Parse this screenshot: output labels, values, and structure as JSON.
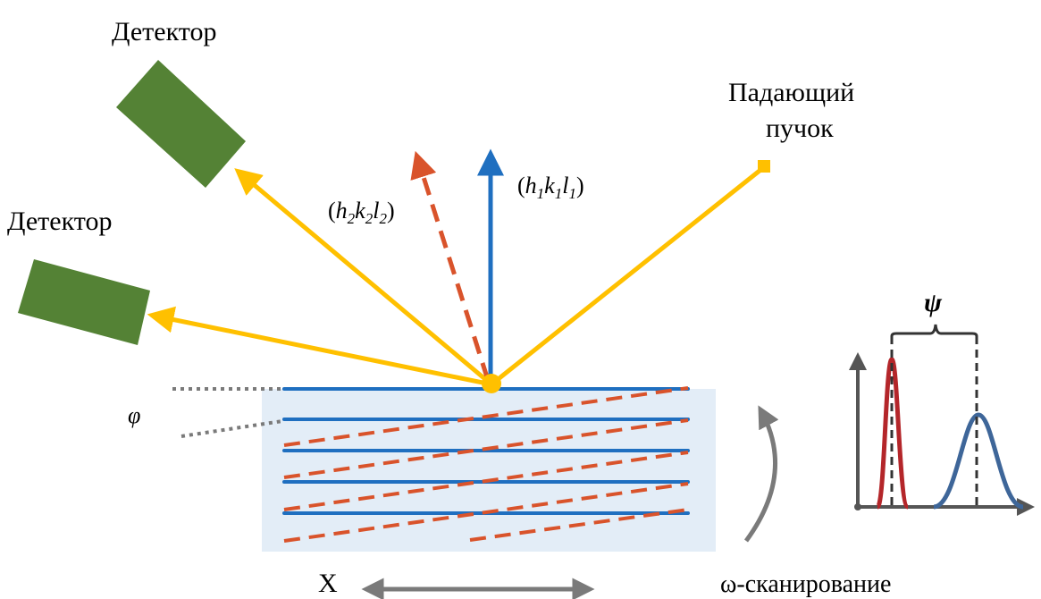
{
  "labels": {
    "detector_top": "Детектор",
    "detector_left": "Детектор",
    "incident_line1": "Падающий",
    "incident_line2": "пучок",
    "phi": "φ",
    "psi": "ψ",
    "x_axis": "X",
    "omega_scan": "ω-сканирование"
  },
  "reflections": {
    "r1": {
      "open": "(",
      "h": "h",
      "h_sub": "1",
      "k": "k",
      "k_sub": "1",
      "l": "l",
      "l_sub": "1",
      "close": ")"
    },
    "r2": {
      "open": "(",
      "h": "h",
      "h_sub": "2",
      "k": "k",
      "k_sub": "2",
      "l": "l",
      "l_sub": "2",
      "close": ")"
    }
  },
  "colors": {
    "beam": "#FFC000",
    "detector": "#548235",
    "plane_solid": "#1F6FC0",
    "plane_dashed": "#D9532B",
    "sample_bg": "#E3EDF7",
    "gray_arrow": "#7A7A7A",
    "peak_red": "#B4262A",
    "peak_blue": "#3E6699",
    "axis": "#555555"
  }
}
